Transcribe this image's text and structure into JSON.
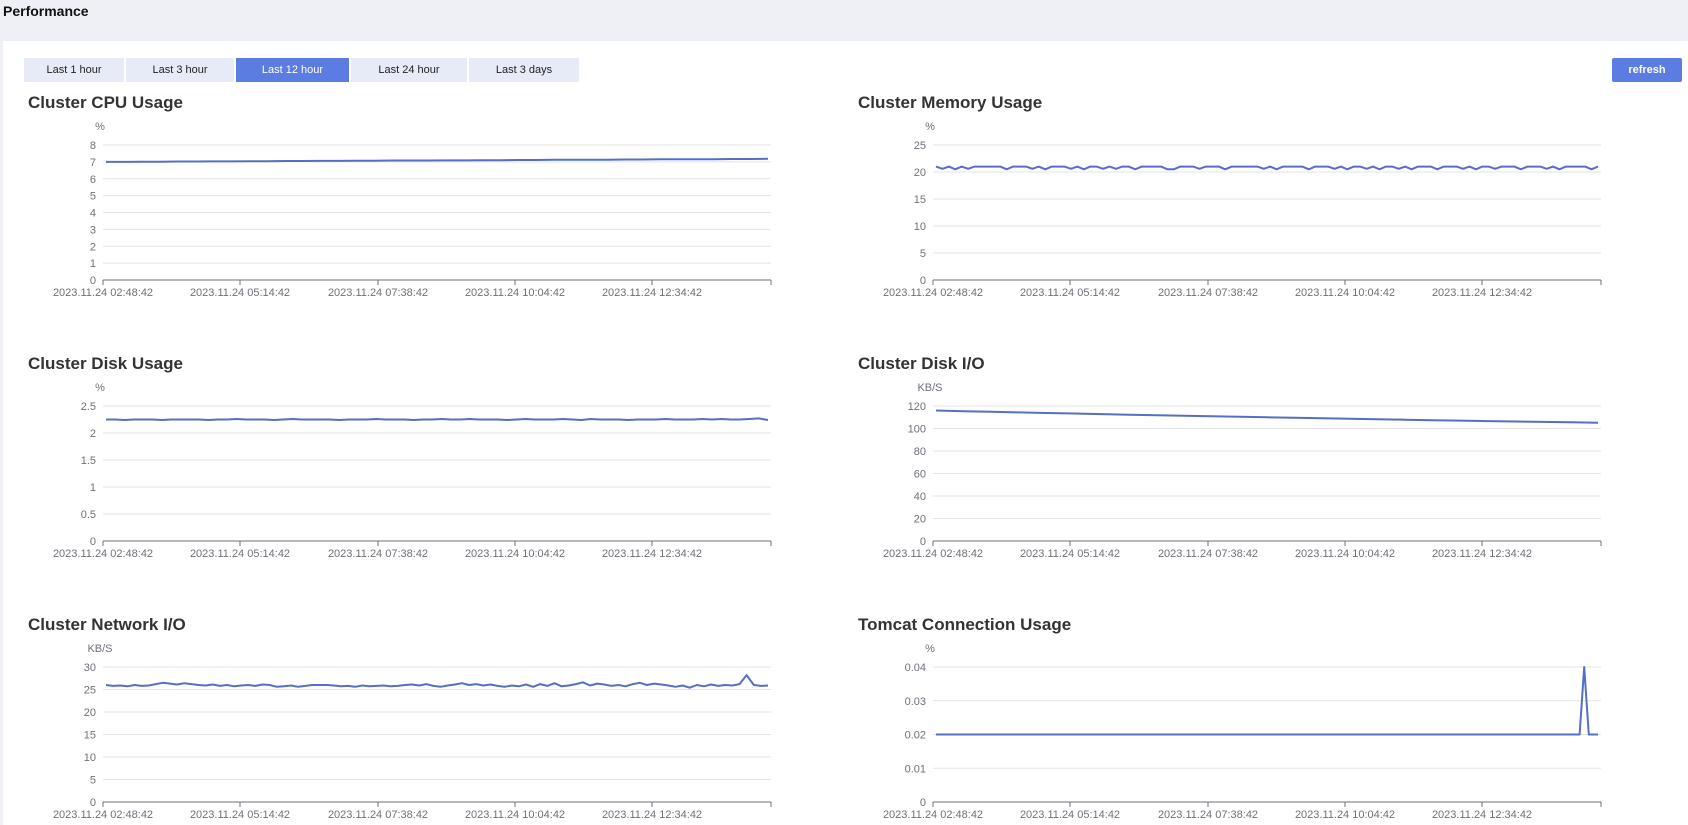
{
  "page": {
    "title": "Performance"
  },
  "toolbar": {
    "ranges": [
      "Last 1 hour",
      "Last 3 hour",
      "Last 12 hour",
      "Last 24 hour",
      "Last 3 days"
    ],
    "active_range": "Last 12 hour",
    "refresh_label": "refresh"
  },
  "colors": {
    "accent": "#5b7ce0",
    "series": "#5470c6",
    "range_bg": "#e6ebf7",
    "page_bg": "#eef0f5"
  },
  "chart_data": [
    {
      "id": "cpu",
      "type": "line",
      "title": "Cluster CPU Usage",
      "unit": "%",
      "ylim": [
        0,
        8
      ],
      "yticks": [
        0,
        1,
        2,
        3,
        4,
        5,
        6,
        7,
        8
      ],
      "xticks": [
        "2023.11.24 02:48:42",
        "2023.11.24 05:14:42",
        "2023.11.24 07:38:42",
        "2023.11.24 10:04:42",
        "2023.11.24 12:34:42"
      ],
      "grid": true,
      "series": [
        {
          "values": [
            7.0,
            7.0,
            7.01,
            7.01,
            7.02,
            7.02,
            7.03,
            7.03,
            7.04,
            7.04,
            7.05,
            7.05,
            7.06,
            7.06,
            7.07,
            7.07,
            7.08,
            7.08,
            7.08,
            7.09,
            7.09,
            7.1,
            7.1,
            7.11,
            7.11,
            7.12,
            7.12,
            7.13,
            7.13,
            7.14,
            7.14,
            7.15,
            7.15,
            7.16,
            7.16,
            7.17,
            7.17,
            7.18
          ]
        }
      ]
    },
    {
      "id": "memory",
      "type": "line",
      "title": "Cluster Memory Usage",
      "unit": "%",
      "ylim": [
        0,
        25
      ],
      "yticks": [
        0,
        5,
        10,
        15,
        20,
        25
      ],
      "xticks": [
        "2023.11.24 02:48:42",
        "2023.11.24 05:14:42",
        "2023.11.24 07:38:42",
        "2023.11.24 10:04:42",
        "2023.11.24 12:34:42"
      ],
      "grid": true,
      "series": [
        {
          "values": [
            21,
            20.6,
            21,
            20.5,
            21,
            20.6,
            21,
            21,
            21,
            21,
            21,
            20.5,
            21,
            21,
            21,
            20.6,
            21,
            20.5,
            21,
            21,
            21,
            20.6,
            21,
            20.5,
            21,
            21,
            20.6,
            21,
            20.6,
            21,
            21,
            20.5,
            21,
            21,
            21,
            21,
            20.5,
            20.5,
            21,
            21,
            21,
            20.6,
            21,
            21,
            21,
            20.5,
            21,
            21,
            21,
            21,
            21,
            20.6,
            21,
            20.5,
            21,
            21,
            21,
            21,
            20.5,
            21,
            21,
            21,
            20.6,
            21,
            20.5,
            21,
            21,
            20.6,
            21,
            20.5,
            21,
            21,
            20.6,
            21,
            20.5,
            21,
            21,
            21,
            20.5,
            21,
            21,
            21,
            20.6,
            21,
            20.5,
            21,
            21,
            20.6,
            21,
            21,
            21,
            20.5,
            21,
            21,
            21,
            20.6,
            21,
            20.5,
            21,
            21,
            21,
            21,
            20.5,
            21
          ]
        }
      ]
    },
    {
      "id": "disk",
      "type": "line",
      "title": "Cluster Disk Usage",
      "unit": "%",
      "ylim": [
        0,
        2.5
      ],
      "yticks": [
        0,
        0.5,
        1,
        1.5,
        2,
        2.5
      ],
      "xticks": [
        "2023.11.24 02:48:42",
        "2023.11.24 05:14:42",
        "2023.11.24 07:38:42",
        "2023.11.24 10:04:42",
        "2023.11.24 12:34:42"
      ],
      "grid": true,
      "series": [
        {
          "values": [
            2.25,
            2.25,
            2.24,
            2.25,
            2.25,
            2.25,
            2.24,
            2.25,
            2.25,
            2.25,
            2.25,
            2.24,
            2.25,
            2.25,
            2.26,
            2.25,
            2.25,
            2.25,
            2.24,
            2.25,
            2.26,
            2.25,
            2.25,
            2.25,
            2.25,
            2.24,
            2.25,
            2.25,
            2.25,
            2.26,
            2.25,
            2.25,
            2.25,
            2.24,
            2.25,
            2.25,
            2.26,
            2.25,
            2.25,
            2.26,
            2.25,
            2.25,
            2.25,
            2.24,
            2.25,
            2.26,
            2.25,
            2.25,
            2.25,
            2.26,
            2.25,
            2.24,
            2.26,
            2.25,
            2.25,
            2.25,
            2.24,
            2.25,
            2.25,
            2.25,
            2.26,
            2.25,
            2.25,
            2.25,
            2.26,
            2.25,
            2.26,
            2.25,
            2.25,
            2.26,
            2.27,
            2.24
          ]
        }
      ]
    },
    {
      "id": "diskio",
      "type": "line",
      "title": "Cluster Disk I/O",
      "unit": "KB/S",
      "ylim": [
        0,
        120
      ],
      "yticks": [
        0,
        20,
        40,
        60,
        80,
        100,
        120
      ],
      "xticks": [
        "2023.11.24 02:48:42",
        "2023.11.24 05:14:42",
        "2023.11.24 07:38:42",
        "2023.11.24 10:04:42",
        "2023.11.24 12:34:42"
      ],
      "grid": true,
      "series": [
        {
          "values": [
            116,
            115.4,
            114.8,
            114.3,
            113.8,
            113.3,
            112.8,
            112.3,
            111.8,
            111.3,
            110.8,
            110.4,
            110,
            109.5,
            109.1,
            108.7,
            108.3,
            107.8,
            107.4,
            107,
            106.6,
            106.2,
            105.9,
            105.5,
            105.1
          ]
        }
      ]
    },
    {
      "id": "network",
      "type": "line",
      "title": "Cluster Network I/O",
      "unit": "KB/S",
      "ylim": [
        0,
        30
      ],
      "yticks": [
        0,
        5,
        10,
        15,
        20,
        25,
        30
      ],
      "xticks": [
        "2023.11.24 02:48:42",
        "2023.11.24 05:14:42",
        "2023.11.24 07:38:42",
        "2023.11.24 10:04:42",
        "2023.11.24 12:34:42"
      ],
      "grid": true,
      "series": [
        {
          "values": [
            26,
            25.8,
            25.9,
            25.7,
            26,
            25.8,
            25.9,
            26.2,
            26.5,
            26.3,
            26.1,
            26.4,
            26.2,
            26,
            25.9,
            26.1,
            25.8,
            26,
            25.7,
            25.9,
            26,
            25.8,
            26.1,
            26,
            25.6,
            25.7,
            25.9,
            25.6,
            25.8,
            26,
            26,
            26,
            25.9,
            25.7,
            25.8,
            25.6,
            25.9,
            25.7,
            25.8,
            25.9,
            25.7,
            25.8,
            26,
            26.1,
            25.9,
            26.2,
            25.8,
            25.6,
            25.9,
            26.1,
            26.4,
            26,
            26.2,
            25.9,
            26.1,
            25.8,
            25.6,
            25.9,
            25.7,
            26.1,
            25.6,
            26.2,
            25.8,
            26.4,
            25.7,
            25.9,
            26.2,
            26.6,
            25.9,
            26.3,
            26.1,
            25.8,
            26,
            25.7,
            26.2,
            26.5,
            26,
            26.3,
            26.1,
            25.9,
            25.6,
            25.9,
            25.4,
            26,
            25.7,
            26.1,
            25.8,
            26,
            25.9,
            26.2,
            28.2,
            26,
            25.8,
            25.9
          ]
        }
      ]
    },
    {
      "id": "tomcat",
      "type": "line",
      "title": "Tomcat Connection Usage",
      "unit": "%",
      "ylim": [
        0,
        0.04
      ],
      "yticks": [
        0,
        0.01,
        0.02,
        0.03,
        0.04
      ],
      "xticks": [
        "2023.11.24 02:48:42",
        "2023.11.24 05:14:42",
        "2023.11.24 07:38:42",
        "2023.11.24 10:04:42",
        "2023.11.24 12:34:42"
      ],
      "grid": true,
      "series": [
        {
          "values": [
            0.02,
            0.02,
            0.02,
            0.02,
            0.02,
            0.02,
            0.02,
            0.02,
            0.02,
            0.02,
            0.02,
            0.02,
            0.02,
            0.02,
            0.02,
            0.02,
            0.02,
            0.02,
            0.02,
            0.02,
            0.02,
            0.02,
            0.02,
            0.02,
            0.02,
            0.02,
            0.02,
            0.02,
            0.02,
            0.02,
            0.02,
            0.02,
            0.02,
            0.02,
            0.02,
            0.02,
            0.02,
            0.02,
            0.02,
            0.02,
            0.02,
            0.02,
            0.02,
            0.02,
            0.02,
            0.02,
            0.02,
            0.02,
            0.02,
            0.02,
            0.02,
            0.02,
            0.02,
            0.02,
            0.02,
            0.02,
            0.02,
            0.02,
            0.02,
            0.02,
            0.02,
            0.02,
            0.02,
            0.02,
            0.02,
            0.02,
            0.02,
            0.02,
            0.02,
            0.02,
            0.02,
            0.02,
            0.02,
            0.02,
            0.02,
            0.02,
            0.02,
            0.02,
            0.02,
            0.02,
            0.02,
            0.02,
            0.02,
            0.02,
            0.02,
            0.02,
            0.02,
            0.02,
            0.02,
            0.02,
            0.02,
            0.02,
            0.02,
            0.02,
            0.02,
            0.02,
            0.02,
            0.02,
            0.02,
            0.02,
            0.02,
            0.02,
            0.02,
            0.02,
            0.02,
            0.02,
            0.02,
            0.02,
            0.02,
            0.02,
            0.02,
            0.02,
            0.02,
            0.02,
            0.02,
            0.02,
            0.02,
            0.02,
            0.02,
            0.02,
            0.02,
            0.02,
            0.02,
            0.02,
            0.02,
            0.02,
            0.02,
            0.02,
            0.02,
            0.02,
            0.02,
            0.02,
            0.02,
            0.02,
            0.02,
            0.02,
            0.02,
            0.02,
            0.02,
            0.02,
            0.02,
            0.04,
            0.02,
            0.02,
            0.02
          ]
        }
      ]
    }
  ]
}
